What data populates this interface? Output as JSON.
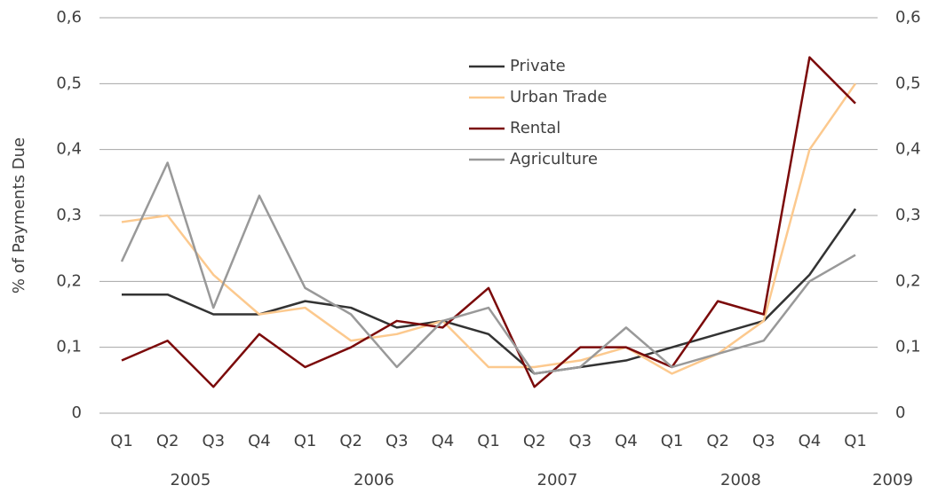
{
  "chart_data": {
    "type": "line",
    "y_label": "% of Payments Due",
    "categories": [
      "Q1",
      "Q2",
      "Q3",
      "Q4",
      "Q1",
      "Q2",
      "Q3",
      "Q4",
      "Q1",
      "Q2",
      "Q3",
      "Q4",
      "Q1",
      "Q2",
      "Q3",
      "Q4",
      "Q1"
    ],
    "years": [
      "2005",
      "2006",
      "2007",
      "2008",
      "2009"
    ],
    "series": [
      {
        "name": "Private",
        "color": "#333333",
        "values": [
          0.18,
          0.18,
          0.15,
          0.15,
          0.17,
          0.16,
          0.13,
          0.14,
          0.12,
          0.06,
          0.07,
          0.08,
          0.1,
          0.12,
          0.14,
          0.21,
          0.31
        ]
      },
      {
        "name": "Urban Trade",
        "color": "#fcc98e",
        "values": [
          0.29,
          0.3,
          0.21,
          0.15,
          0.16,
          0.11,
          0.12,
          0.14,
          0.07,
          0.07,
          0.08,
          0.1,
          0.06,
          0.09,
          0.14,
          0.4,
          0.5
        ]
      },
      {
        "name": "Rental",
        "color": "#7b0a0a",
        "values": [
          0.08,
          0.11,
          0.04,
          0.12,
          0.07,
          0.1,
          0.14,
          0.13,
          0.19,
          0.04,
          0.1,
          0.1,
          0.07,
          0.17,
          0.15,
          0.54,
          0.47
        ]
      },
      {
        "name": "Agriculture",
        "color": "#999999",
        "values": [
          0.23,
          0.38,
          0.16,
          0.33,
          0.19,
          0.15,
          0.07,
          0.14,
          0.16,
          0.06,
          0.07,
          0.13,
          0.07,
          0.09,
          0.11,
          0.2,
          0.24
        ]
      }
    ],
    "ylim": [
      0,
      0.6
    ],
    "yticks": [
      0,
      {
        "value": 0.1,
        "label": "0,1"
      },
      {
        "value": 0.2,
        "label": "0,2"
      },
      {
        "value": 0.3,
        "label": "0,3"
      },
      {
        "value": 0.4,
        "label": "0,4"
      },
      {
        "value": 0.5,
        "label": "0,5"
      },
      {
        "value": 0.6,
        "label": "0,6"
      }
    ],
    "y2lim": [
      0,
      0.6
    ],
    "y2ticks": [
      0,
      {
        "value": 0.1,
        "label": "0,1"
      },
      {
        "value": 0.2,
        "label": "0,2"
      },
      {
        "value": 0.3,
        "label": "0,3"
      },
      {
        "value": 0.4,
        "label": "0,4"
      },
      {
        "value": 0.5,
        "label": "0,5"
      },
      {
        "value": 0.6,
        "label": "0,6"
      }
    ],
    "grid": true
  }
}
